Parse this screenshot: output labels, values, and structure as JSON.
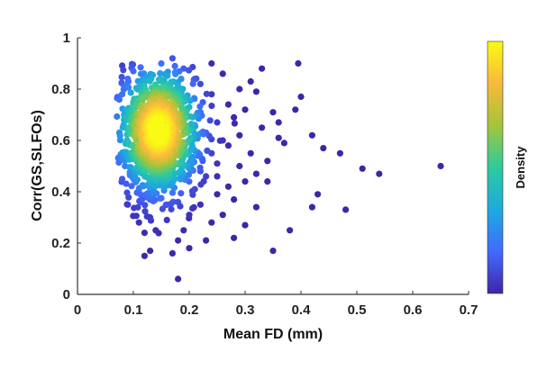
{
  "chart_data": {
    "type": "scatter",
    "title": "",
    "xlabel": "Mean FD (mm)",
    "ylabel": "Corr(GS,SLFOs)",
    "xlim": [
      0,
      0.7
    ],
    "ylim": [
      0,
      1
    ],
    "xticks": [
      "0",
      "0.1",
      "0.2",
      "0.3",
      "0.4",
      "0.5",
      "0.6",
      "0.7"
    ],
    "yticks": [
      "0",
      "0.2",
      "0.4",
      "0.6",
      "0.8",
      "1"
    ],
    "grid": false,
    "colorbar": {
      "label": "Density",
      "colormap": "parula",
      "colors": [
        "#3e26a8",
        "#4367fd",
        "#1caadf",
        "#2ccb9d",
        "#a6c439",
        "#fbba3b",
        "#f9fb14"
      ]
    },
    "marker_color_low": "#3e26a8",
    "points": [
      [
        0.65,
        0.5
      ],
      [
        0.54,
        0.47
      ],
      [
        0.51,
        0.49
      ],
      [
        0.48,
        0.33
      ],
      [
        0.47,
        0.55
      ],
      [
        0.44,
        0.57
      ],
      [
        0.43,
        0.39
      ],
      [
        0.42,
        0.62
      ],
      [
        0.42,
        0.34
      ],
      [
        0.395,
        0.9
      ],
      [
        0.4,
        0.77
      ],
      [
        0.39,
        0.72
      ],
      [
        0.38,
        0.25
      ],
      [
        0.36,
        0.61
      ],
      [
        0.36,
        0.67
      ],
      [
        0.35,
        0.71
      ],
      [
        0.35,
        0.17
      ],
      [
        0.34,
        0.52
      ],
      [
        0.33,
        0.88
      ],
      [
        0.33,
        0.65
      ],
      [
        0.32,
        0.47
      ],
      [
        0.32,
        0.34
      ],
      [
        0.31,
        0.83
      ],
      [
        0.31,
        0.55
      ],
      [
        0.3,
        0.72
      ],
      [
        0.3,
        0.44
      ],
      [
        0.3,
        0.27
      ],
      [
        0.29,
        0.8
      ],
      [
        0.29,
        0.62
      ],
      [
        0.29,
        0.5
      ],
      [
        0.28,
        0.37
      ],
      [
        0.28,
        0.22
      ],
      [
        0.27,
        0.74
      ],
      [
        0.27,
        0.58
      ],
      [
        0.27,
        0.42
      ],
      [
        0.26,
        0.31
      ],
      [
        0.26,
        0.86
      ],
      [
        0.25,
        0.67
      ],
      [
        0.25,
        0.51
      ],
      [
        0.25,
        0.39
      ],
      [
        0.24,
        0.9
      ],
      [
        0.24,
        0.78
      ],
      [
        0.24,
        0.28
      ],
      [
        0.23,
        0.63
      ],
      [
        0.23,
        0.46
      ],
      [
        0.23,
        0.21
      ],
      [
        0.22,
        0.71
      ],
      [
        0.22,
        0.35
      ],
      [
        0.21,
        0.84
      ],
      [
        0.21,
        0.56
      ],
      [
        0.21,
        0.41
      ],
      [
        0.2,
        0.73
      ],
      [
        0.2,
        0.31
      ],
      [
        0.2,
        0.18
      ],
      [
        0.19,
        0.88
      ],
      [
        0.19,
        0.25
      ],
      [
        0.18,
        0.21
      ],
      [
        0.18,
        0.06
      ],
      [
        0.17,
        0.92
      ],
      [
        0.17,
        0.16
      ],
      [
        0.16,
        0.29
      ],
      [
        0.15,
        0.9
      ],
      [
        0.14,
        0.25
      ],
      [
        0.13,
        0.17
      ],
      [
        0.12,
        0.15
      ],
      [
        0.12,
        0.24
      ],
      [
        0.11,
        0.28
      ],
      [
        0.1,
        0.87
      ],
      [
        0.09,
        0.35
      ],
      [
        0.08,
        0.45
      ],
      [
        0.075,
        0.63
      ],
      [
        0.08,
        0.78
      ],
      [
        0.09,
        0.84
      ],
      [
        0.08,
        0.55
      ],
      [
        0.085,
        0.5
      ],
      [
        0.32,
        0.79
      ],
      [
        0.34,
        0.44
      ],
      [
        0.37,
        0.59
      ],
      [
        0.28,
        0.69
      ],
      [
        0.26,
        0.6
      ],
      [
        0.25,
        0.46
      ],
      [
        0.24,
        0.55
      ],
      [
        0.22,
        0.48
      ],
      [
        0.21,
        0.66
      ],
      [
        0.22,
        0.82
      ],
      [
        0.18,
        0.36
      ],
      [
        0.16,
        0.35
      ],
      [
        0.13,
        0.3
      ],
      [
        0.11,
        0.4
      ],
      [
        0.1,
        0.75
      ]
    ]
  }
}
